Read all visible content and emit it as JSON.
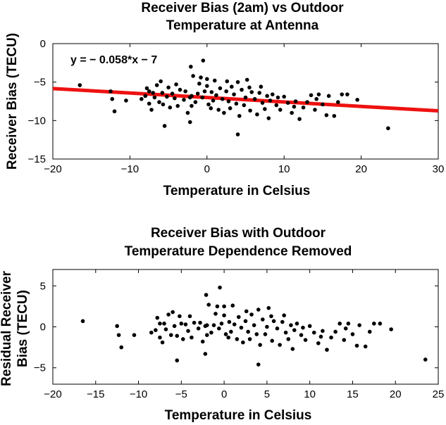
{
  "chart_data": [
    {
      "type": "scatter",
      "title": [
        "Receiver Bias (2am) vs Outdoor",
        "Temperature at Antenna"
      ],
      "xlabel": "Temperature in Celsius",
      "ylabel": "Receiver Bias (TECU)",
      "xlim": [
        -20,
        30
      ],
      "ylim": [
        -15,
        0
      ],
      "xticks": [
        -20,
        -10,
        0,
        10,
        20,
        30
      ],
      "yticks": [
        -15,
        -10,
        -5,
        0
      ],
      "xtick_labels": [
        "−20",
        "−10",
        "0",
        "10",
        "20",
        "30"
      ],
      "ytick_labels": [
        "−15",
        "−10",
        "−5",
        "0"
      ],
      "grid": false,
      "marker_color": "#000000",
      "annotation": "y = − 0.058*x − 7",
      "fit_line": {
        "slope": -0.058,
        "intercept": -7,
        "color": "#ee1111"
      },
      "points": [
        [
          -16.5,
          -5.4
        ],
        [
          -12.5,
          -6.2
        ],
        [
          -12.3,
          -7.2
        ],
        [
          -12.0,
          -8.8
        ],
        [
          -10.5,
          -7.4
        ],
        [
          -8.5,
          -7.2
        ],
        [
          -8.0,
          -6.8
        ],
        [
          -7.8,
          -5.8
        ],
        [
          -7.5,
          -6.2
        ],
        [
          -7.5,
          -7.8
        ],
        [
          -7.2,
          -8.6
        ],
        [
          -7.0,
          -6.4
        ],
        [
          -6.8,
          -7.0
        ],
        [
          -6.5,
          -5.4
        ],
        [
          -6.2,
          -7.6
        ],
        [
          -6.0,
          -4.9
        ],
        [
          -5.8,
          -6.4
        ],
        [
          -5.7,
          -7.9
        ],
        [
          -5.5,
          -10.7
        ],
        [
          -5.2,
          -6.9
        ],
        [
          -5.0,
          -5.7
        ],
        [
          -4.8,
          -8.3
        ],
        [
          -4.5,
          -6.5
        ],
        [
          -4.2,
          -7.1
        ],
        [
          -4.0,
          -5.3
        ],
        [
          -3.8,
          -8.1
        ],
        [
          -3.5,
          -6.0
        ],
        [
          -3.0,
          -7.3
        ],
        [
          -2.8,
          -6.2
        ],
        [
          -2.5,
          -9.0
        ],
        [
          -2.2,
          -7.0
        ],
        [
          -2.2,
          -10.2
        ],
        [
          -2.1,
          -3.0
        ],
        [
          -2.0,
          -6.8
        ],
        [
          -2.0,
          -8.1
        ],
        [
          -1.8,
          -4.2
        ],
        [
          -1.5,
          -7.6
        ],
        [
          -1.2,
          -6.5
        ],
        [
          -1.0,
          -5.2
        ],
        [
          -0.8,
          -4.4
        ],
        [
          -0.6,
          -7.0
        ],
        [
          -0.5,
          -2.2
        ],
        [
          -0.3,
          -6.2
        ],
        [
          0.0,
          -4.6
        ],
        [
          0.0,
          -5.5
        ],
        [
          0.2,
          -7.9
        ],
        [
          0.5,
          -8.4
        ],
        [
          0.6,
          -6.3
        ],
        [
          0.8,
          -7.4
        ],
        [
          1.0,
          -4.8
        ],
        [
          1.2,
          -6.7
        ],
        [
          1.5,
          -8.6
        ],
        [
          1.7,
          -5.8
        ],
        [
          2.0,
          -7.2
        ],
        [
          2.2,
          -9.0
        ],
        [
          2.5,
          -6.2
        ],
        [
          2.6,
          -4.9
        ],
        [
          2.8,
          -7.5
        ],
        [
          3.0,
          -8.4
        ],
        [
          3.2,
          -5.6
        ],
        [
          3.5,
          -6.6
        ],
        [
          3.8,
          -7.8
        ],
        [
          4.0,
          -11.8
        ],
        [
          4.0,
          -5.0
        ],
        [
          4.2,
          -9.4
        ],
        [
          4.5,
          -6.0
        ],
        [
          4.8,
          -8.0
        ],
        [
          5.0,
          -7.0
        ],
        [
          5.2,
          -4.7
        ],
        [
          5.5,
          -5.7
        ],
        [
          5.6,
          -8.7
        ],
        [
          5.8,
          -6.3
        ],
        [
          6.2,
          -7.2
        ],
        [
          6.5,
          -9.2
        ],
        [
          6.8,
          -6.4
        ],
        [
          7.0,
          -5.6
        ],
        [
          7.2,
          -7.7
        ],
        [
          7.5,
          -8.5
        ],
        [
          7.8,
          -6.8
        ],
        [
          8.0,
          -9.7
        ],
        [
          8.2,
          -7.4
        ],
        [
          8.5,
          -6.6
        ],
        [
          9.0,
          -8.0
        ],
        [
          9.2,
          -7.0
        ],
        [
          9.5,
          -8.6
        ],
        [
          10.0,
          -6.9
        ],
        [
          10.5,
          -7.7
        ],
        [
          11.0,
          -9.0
        ],
        [
          11.3,
          -8.2
        ],
        [
          11.5,
          -7.5
        ],
        [
          12.0,
          -9.8
        ],
        [
          12.5,
          -8.3
        ],
        [
          13.0,
          -7.6
        ],
        [
          13.5,
          -6.7
        ],
        [
          14.0,
          -8.6
        ],
        [
          14.2,
          -7.2
        ],
        [
          14.5,
          -6.6
        ],
        [
          15.0,
          -7.9
        ],
        [
          15.5,
          -9.3
        ],
        [
          15.8,
          -6.8
        ],
        [
          16.5,
          -9.4
        ],
        [
          17.0,
          -7.6
        ],
        [
          17.5,
          -6.6
        ],
        [
          18.2,
          -6.6
        ],
        [
          19.5,
          -7.3
        ],
        [
          23.5,
          -11.0
        ]
      ]
    },
    {
      "type": "scatter",
      "title": [
        "Receiver Bias with Outdoor",
        "Temperature Dependence Removed"
      ],
      "xlabel": "Temperature in Celsius",
      "ylabel": [
        "Residual Receiver",
        "Bias (TECU)"
      ],
      "xlim": [
        -20,
        25
      ],
      "ylim": [
        -7,
        7
      ],
      "xticks": [
        -20,
        -15,
        -10,
        -5,
        0,
        5,
        10,
        15,
        20,
        25
      ],
      "yticks": [
        -5,
        0,
        5
      ],
      "xtick_labels": [
        "−20",
        "−15",
        "−10",
        "−5",
        "0",
        "5",
        "10",
        "15",
        "20",
        "25"
      ],
      "ytick_labels": [
        "−5",
        "0",
        "5"
      ],
      "grid": false,
      "marker_color": "#000000",
      "points": [
        [
          -16.5,
          0.7
        ],
        [
          -12.5,
          0.1
        ],
        [
          -12.3,
          -1.0
        ],
        [
          -12.0,
          -2.5
        ],
        [
          -10.5,
          -1.0
        ],
        [
          -8.5,
          -0.7
        ],
        [
          -8.0,
          -0.4
        ],
        [
          -7.8,
          1.1
        ],
        [
          -7.5,
          0.4
        ],
        [
          -7.5,
          -1.3
        ],
        [
          -7.2,
          -1.9
        ],
        [
          -7.0,
          0.4
        ],
        [
          -6.8,
          -0.3
        ],
        [
          -6.5,
          1.5
        ],
        [
          -6.2,
          -1.0
        ],
        [
          -6.0,
          1.8
        ],
        [
          -5.8,
          0.1
        ],
        [
          -5.5,
          -1.1
        ],
        [
          -5.5,
          -4.1
        ],
        [
          -5.2,
          1.3
        ],
        [
          -5.0,
          0.4
        ],
        [
          -4.8,
          -1.5
        ],
        [
          -4.5,
          0.3
        ],
        [
          -4.2,
          -0.5
        ],
        [
          -4.0,
          1.3
        ],
        [
          -3.8,
          -1.3
        ],
        [
          -3.5,
          0.5
        ],
        [
          -3.0,
          -0.2
        ],
        [
          -2.8,
          0.5
        ],
        [
          -2.5,
          -1.8
        ],
        [
          -2.2,
          0.1
        ],
        [
          -2.2,
          -3.3
        ],
        [
          -2.1,
          3.9
        ],
        [
          -2.0,
          0.2
        ],
        [
          -2.0,
          -1.0
        ],
        [
          -1.8,
          2.7
        ],
        [
          -1.5,
          -0.7
        ],
        [
          -1.2,
          0.2
        ],
        [
          -1.0,
          1.6
        ],
        [
          -0.8,
          2.5
        ],
        [
          -0.6,
          -0.2
        ],
        [
          -0.5,
          4.8
        ],
        [
          -0.3,
          0.4
        ],
        [
          0.0,
          2.5
        ],
        [
          0.0,
          1.4
        ],
        [
          0.2,
          -0.9
        ],
        [
          0.5,
          -1.3
        ],
        [
          0.6,
          0.6
        ],
        [
          0.8,
          -0.6
        ],
        [
          1.0,
          2.6
        ],
        [
          1.2,
          0.3
        ],
        [
          1.5,
          -1.5
        ],
        [
          1.7,
          1.2
        ],
        [
          2.0,
          -0.1
        ],
        [
          2.2,
          -1.9
        ],
        [
          2.5,
          0.7
        ],
        [
          2.6,
          1.9
        ],
        [
          2.8,
          -0.6
        ],
        [
          3.0,
          -1.5
        ],
        [
          3.2,
          1.5
        ],
        [
          3.5,
          0.2
        ],
        [
          3.8,
          -0.9
        ],
        [
          4.0,
          -4.6
        ],
        [
          4.0,
          2.1
        ],
        [
          4.2,
          -2.2
        ],
        [
          4.5,
          0.9
        ],
        [
          4.8,
          -0.9
        ],
        [
          5.0,
          0.0
        ],
        [
          5.2,
          2.3
        ],
        [
          5.5,
          1.3
        ],
        [
          5.6,
          -1.7
        ],
        [
          5.8,
          0.7
        ],
        [
          6.2,
          -0.2
        ],
        [
          6.5,
          -2.2
        ],
        [
          6.8,
          0.6
        ],
        [
          7.0,
          1.4
        ],
        [
          7.2,
          -0.7
        ],
        [
          7.5,
          -1.5
        ],
        [
          7.8,
          0.2
        ],
        [
          8.0,
          -2.7
        ],
        [
          8.2,
          -0.4
        ],
        [
          8.5,
          0.4
        ],
        [
          9.0,
          -1.0
        ],
        [
          9.2,
          -0.1
        ],
        [
          9.5,
          -1.6
        ],
        [
          10.0,
          0.1
        ],
        [
          10.5,
          -0.7
        ],
        [
          11.0,
          -2.0
        ],
        [
          11.3,
          -1.2
        ],
        [
          11.5,
          -0.5
        ],
        [
          12.0,
          -2.8
        ],
        [
          12.5,
          -1.3
        ],
        [
          13.0,
          -0.6
        ],
        [
          13.5,
          0.4
        ],
        [
          14.0,
          -1.6
        ],
        [
          14.2,
          -0.2
        ],
        [
          14.5,
          0.4
        ],
        [
          15.0,
          -0.9
        ],
        [
          15.5,
          -2.3
        ],
        [
          15.8,
          0.2
        ],
        [
          16.5,
          -2.4
        ],
        [
          17.0,
          -0.6
        ],
        [
          17.5,
          0.4
        ],
        [
          18.2,
          0.4
        ],
        [
          19.5,
          -0.3
        ],
        [
          23.5,
          -4.0
        ]
      ]
    }
  ]
}
